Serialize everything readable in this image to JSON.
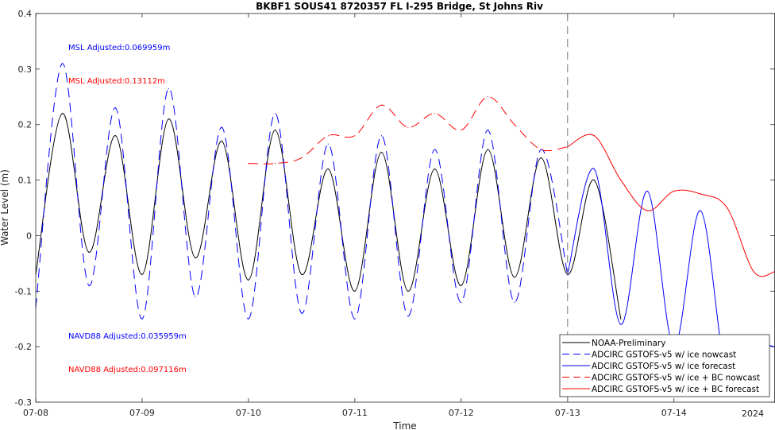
{
  "chart_data": {
    "type": "line",
    "title": "BKBF1 SOUS41 8720357 FL I-295 Bridge, St Johns Riv",
    "xlabel": "Time",
    "ylabel": "Water Level (m)",
    "ylim": [
      -0.3,
      0.4
    ],
    "xlim_days": [
      0,
      6.95
    ],
    "x_ticks": [
      "07-08",
      "07-09",
      "07-10",
      "07-11",
      "07-12",
      "07-13",
      "07-14"
    ],
    "x_year_label": "2024",
    "y_ticks": [
      -0.3,
      -0.2,
      -0.1,
      0,
      0.1,
      0.2,
      0.3,
      0.4
    ],
    "forecast_start": "07-13",
    "grid": false,
    "legend_position": "bottom-right",
    "annotations": [
      {
        "text": "MSL Adjusted:0.069959m",
        "color": "#0000ff"
      },
      {
        "text": "MSL Adjusted:0.13112m",
        "color": "#ff0000"
      },
      {
        "text": "NAVD88 Adjusted:0.035959m",
        "color": "#0000ff"
      },
      {
        "text": "NAVD88 Adjusted:0.097116m",
        "color": "#ff0000"
      }
    ],
    "series": [
      {
        "name": "NOAA-Preliminary",
        "color": "#000000",
        "dash": "solid",
        "x": [
          "07-08 00:00",
          "07-08 06:00",
          "07-08 12:00",
          "07-08 18:00",
          "07-09 00:00",
          "07-09 06:00",
          "07-09 12:00",
          "07-09 18:00",
          "07-10 00:00",
          "07-10 06:00",
          "07-10 12:00",
          "07-10 18:00",
          "07-11 00:00",
          "07-11 06:00",
          "07-11 12:00",
          "07-11 18:00",
          "07-12 00:00",
          "07-12 06:00",
          "07-12 12:00",
          "07-12 18:00",
          "07-13 00:00",
          "07-13 06:00",
          "07-13 12:00"
        ],
        "values": [
          -0.07,
          0.22,
          -0.03,
          0.18,
          -0.07,
          0.21,
          -0.04,
          0.17,
          -0.08,
          0.19,
          -0.07,
          0.12,
          -0.1,
          0.15,
          -0.1,
          0.12,
          -0.09,
          0.155,
          -0.075,
          0.14,
          -0.07,
          0.1,
          -0.15
        ]
      },
      {
        "name": "ADCIRC GSTOFS-v5 w/ ice nowcast",
        "color": "#0000ff",
        "dash": "dashed",
        "x": [
          "07-08 00:00",
          "07-08 06:00",
          "07-08 12:00",
          "07-08 18:00",
          "07-09 00:00",
          "07-09 06:00",
          "07-09 12:00",
          "07-09 18:00",
          "07-10 00:00",
          "07-10 06:00",
          "07-10 12:00",
          "07-10 18:00",
          "07-11 00:00",
          "07-11 06:00",
          "07-11 12:00",
          "07-11 18:00",
          "07-12 00:00",
          "07-12 06:00",
          "07-12 12:00",
          "07-12 18:00",
          "07-13 00:00"
        ],
        "values": [
          -0.13,
          0.31,
          -0.09,
          0.23,
          -0.15,
          0.265,
          -0.11,
          0.195,
          -0.15,
          0.22,
          -0.14,
          0.165,
          -0.15,
          0.18,
          -0.145,
          0.155,
          -0.12,
          0.19,
          -0.12,
          0.155,
          -0.07
        ]
      },
      {
        "name": "ADCIRC GSTOFS-v5 w/ ice forecast",
        "color": "#0000ff",
        "dash": "solid",
        "x": [
          "07-13 00:00",
          "07-13 06:00",
          "07-13 12:00",
          "07-13 18:00",
          "07-14 00:00",
          "07-14 06:00",
          "07-14 12:00",
          "07-14 18:00",
          "07-14 22:48"
        ],
        "values": [
          -0.07,
          0.12,
          -0.16,
          0.08,
          -0.2,
          0.045,
          -0.255,
          -0.2,
          -0.2
        ]
      },
      {
        "name": "ADCIRC GSTOFS-v5 w/ ice + BC nowcast",
        "color": "#ff0000",
        "dash": "dashed",
        "x": [
          "07-10 00:00",
          "07-10 06:00",
          "07-10 12:00",
          "07-10 18:00",
          "07-11 00:00",
          "07-11 06:00",
          "07-11 12:00",
          "07-11 18:00",
          "07-12 00:00",
          "07-12 06:00",
          "07-12 12:00",
          "07-12 18:00",
          "07-13 00:00"
        ],
        "values": [
          0.13,
          0.13,
          0.14,
          0.18,
          0.18,
          0.235,
          0.195,
          0.22,
          0.19,
          0.25,
          0.2,
          0.155,
          0.16
        ]
      },
      {
        "name": "ADCIRC GSTOFS-v5 w/ ice + BC forecast",
        "color": "#ff0000",
        "dash": "solid",
        "x": [
          "07-13 00:00",
          "07-13 06:00",
          "07-13 12:00",
          "07-13 18:00",
          "07-14 00:00",
          "07-14 06:00",
          "07-14 12:00",
          "07-14 18:00",
          "07-14 22:48"
        ],
        "values": [
          0.16,
          0.18,
          0.1,
          0.045,
          0.08,
          0.075,
          0.05,
          -0.065,
          -0.065
        ]
      }
    ]
  }
}
